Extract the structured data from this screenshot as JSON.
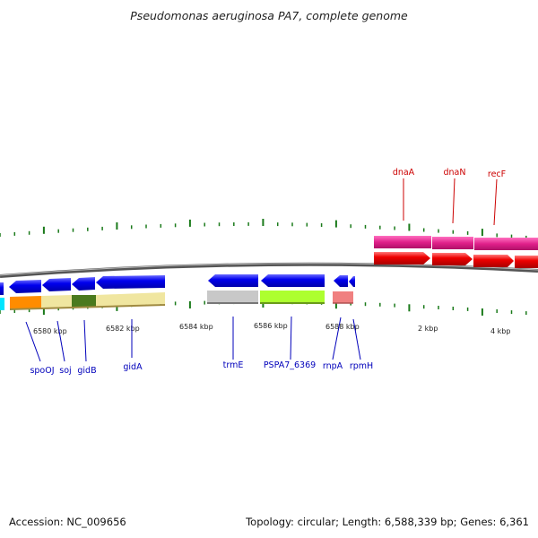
{
  "title": "Pseudomonas aeruginosa PA7, complete genome",
  "scale_labels": [
    "6580 kbp",
    "6582 kbp",
    "6584 kbp",
    "6586 kbp",
    "6588 kbp",
    "2 kbp",
    "4 kbp"
  ],
  "gene_labels": {
    "forward": [
      "dnaA",
      "dnaN",
      "recF"
    ],
    "reverse": [
      "spoOJ",
      "soj",
      "gidB",
      "gidA",
      "trmE",
      "PSPA7_6369",
      "rnpA",
      "rpmH"
    ]
  },
  "colors": {
    "forward_label": "#cc0000",
    "reverse_label": "#0000bb",
    "tick": "#1a7a1a",
    "backbone": "#666666",
    "gene_blue": "#0000ee",
    "gene_red": "#ee0000",
    "band_magenta": "#e0208a"
  },
  "footer": {
    "accession": "Accession: NC_009656",
    "summary": "Topology: circular; Length: 6,588,339 bp; Genes: 6,361"
  }
}
